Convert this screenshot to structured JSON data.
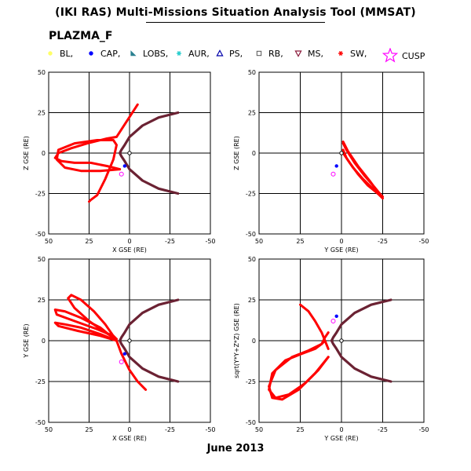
{
  "header": {
    "title": "(IKI RAS) Multi-Missions Situation Analysis Tool (MMSAT)",
    "mission": "PLAZMA_F",
    "date": "June 2013"
  },
  "legend": [
    {
      "label": "BL,",
      "icon": "circle-filled",
      "color": "#ffff66"
    },
    {
      "label": "CAP,",
      "icon": "circle-filled",
      "color": "#0000ff"
    },
    {
      "label": "LOBS,",
      "icon": "triangle-filled",
      "color": "#2a8090"
    },
    {
      "label": "AUR,",
      "icon": "asterisk",
      "color": "#22cccc"
    },
    {
      "label": "PS,",
      "icon": "triangle-outline",
      "color": "#0000aa"
    },
    {
      "label": "RB,",
      "icon": "square-outline",
      "color": "#555555"
    },
    {
      "label": "MS,",
      "icon": "triangle-down-outline",
      "color": "#8a1a3a"
    },
    {
      "label": "SW,",
      "icon": "asterisk",
      "color": "#ff0000"
    },
    {
      "label": "CUSP",
      "icon": "star-outline",
      "color": "#ff00ff"
    }
  ],
  "colors": {
    "orbit": "#ff0000",
    "boundary": "#6b2233",
    "origin": "#000000"
  },
  "chart_data": [
    {
      "type": "line",
      "position": "top-left",
      "xlabel": "X GSE (RE)",
      "ylabel": "Z GSE (RE)",
      "xlim": [
        50,
        -50
      ],
      "ylim": [
        -50,
        50
      ],
      "xticks": [
        "50",
        "25",
        "0",
        "-25",
        "-50"
      ],
      "yticks": [
        "-50",
        "-25",
        "0",
        "25",
        "50"
      ],
      "grid": true,
      "series": [
        {
          "kind": "boundary",
          "x": [
            -30,
            -18,
            -8,
            0,
            3,
            5,
            6,
            5,
            3,
            0,
            -8,
            -18,
            -30
          ],
          "y": [
            -25,
            -22,
            -17,
            -10,
            -5,
            -2,
            0,
            2,
            5,
            10,
            17,
            22,
            25
          ]
        },
        {
          "kind": "orbit",
          "x": [
            6,
            18,
            30,
            40,
            45,
            44,
            34,
            20,
            10,
            8,
            10,
            15,
            20,
            24,
            25
          ],
          "y": [
            -10,
            -11,
            -11,
            -9,
            -4,
            2,
            6,
            8,
            8,
            5,
            -4,
            -16,
            -26,
            -29,
            -30
          ]
        },
        {
          "kind": "orbit",
          "x": [
            6,
            14,
            24,
            34,
            42,
            46,
            44,
            36,
            26,
            14,
            8,
            -5
          ],
          "y": [
            -10,
            -8,
            -6,
            -6,
            -5,
            -3,
            0,
            3,
            6,
            9,
            10,
            30
          ]
        }
      ]
    },
    {
      "type": "line",
      "position": "top-right",
      "xlabel": "Y GSE (RE)",
      "ylabel": "Z GSE (RE)",
      "xlim": [
        50,
        -50
      ],
      "ylim": [
        -50,
        50
      ],
      "xticks": [
        "50",
        "25",
        "0",
        "-25",
        "-50"
      ],
      "yticks": [
        "-50",
        "-25",
        "0",
        "25",
        "50"
      ],
      "grid": true,
      "series": [
        {
          "kind": "orbit",
          "x": [
            -1,
            -3,
            -8,
            -14,
            -20,
            -24,
            -25,
            -22,
            -16,
            -10,
            -5,
            -1
          ],
          "y": [
            6,
            2,
            -6,
            -14,
            -21,
            -26,
            -27,
            -25,
            -20,
            -13,
            -6,
            0
          ]
        },
        {
          "kind": "orbit",
          "x": [
            -1,
            -4,
            -10,
            -17,
            -22,
            -25,
            -24,
            -20,
            -13,
            -7,
            -3,
            -1
          ],
          "y": [
            7,
            1,
            -8,
            -17,
            -24,
            -28,
            -27,
            -23,
            -16,
            -9,
            -3,
            2
          ]
        }
      ]
    },
    {
      "type": "line",
      "position": "bottom-left",
      "xlabel": "X GSE (RE)",
      "ylabel": "Y GSE (RE)",
      "xlim": [
        50,
        -50
      ],
      "ylim": [
        -50,
        50
      ],
      "xticks": [
        "50",
        "25",
        "0",
        "-25",
        "-50"
      ],
      "yticks": [
        "-50",
        "-25",
        "0",
        "25",
        "50"
      ],
      "grid": true,
      "series": [
        {
          "kind": "boundary",
          "x": [
            -30,
            -18,
            -8,
            0,
            3,
            5,
            6,
            5,
            3,
            0,
            -8,
            -18,
            -30
          ],
          "y": [
            -25,
            -22,
            -17,
            -10,
            -5,
            -2,
            0,
            2,
            5,
            10,
            17,
            22,
            25
          ]
        },
        {
          "kind": "orbit",
          "x": [
            8,
            18,
            30,
            40,
            46,
            44,
            32,
            18,
            8
          ],
          "y": [
            0,
            4,
            8,
            10,
            11,
            9,
            6,
            3,
            0
          ]
        },
        {
          "kind": "orbit",
          "x": [
            8,
            18,
            30,
            40,
            46,
            45,
            34,
            20,
            10,
            8
          ],
          "y": [
            0,
            8,
            14,
            18,
            19,
            16,
            12,
            7,
            3,
            1
          ]
        },
        {
          "kind": "orbit",
          "x": [
            8,
            15,
            22,
            30,
            36,
            38,
            34,
            25,
            15,
            8
          ],
          "y": [
            0,
            10,
            18,
            25,
            28,
            26,
            20,
            12,
            5,
            1
          ]
        },
        {
          "kind": "orbit",
          "x": [
            8,
            5,
            0,
            -5,
            -10
          ],
          "y": [
            0,
            -8,
            -18,
            -25,
            -30
          ]
        }
      ]
    },
    {
      "type": "line",
      "position": "bottom-right",
      "xlabel": "Y GSE (RE)",
      "ylabel": "sqrt(Y*Y+Z*Z) GSE (RE)",
      "xlim": [
        50,
        -50
      ],
      "ylim": [
        -50,
        50
      ],
      "xticks": [
        "50",
        "25",
        "0",
        "-25",
        "-50"
      ],
      "yticks": [
        "-50",
        "-25",
        "0",
        "25",
        "50"
      ],
      "grid": true,
      "series": [
        {
          "kind": "boundary",
          "x": [
            -30,
            -18,
            -8,
            0,
            3,
            5,
            6,
            5,
            3,
            0,
            -8,
            -18,
            -30
          ],
          "y": [
            -25,
            -22,
            -17,
            -10,
            -5,
            -2,
            0,
            2,
            5,
            10,
            17,
            22,
            25
          ]
        },
        {
          "kind": "orbit",
          "x": [
            8,
            14,
            22,
            32,
            40,
            44,
            42,
            34,
            24,
            16,
            12,
            10,
            8
          ],
          "y": [
            -10,
            -18,
            -26,
            -33,
            -35,
            -30,
            -20,
            -12,
            -8,
            -5,
            -2,
            2,
            5
          ]
        },
        {
          "kind": "orbit",
          "x": [
            8,
            16,
            26,
            36,
            42,
            44,
            40,
            30,
            20,
            12,
            10
          ],
          "y": [
            -10,
            -20,
            -30,
            -36,
            -35,
            -28,
            -18,
            -10,
            -6,
            -2,
            0
          ]
        },
        {
          "kind": "orbit",
          "x": [
            8,
            12,
            16,
            20,
            25
          ],
          "y": [
            -5,
            5,
            12,
            18,
            22
          ]
        }
      ]
    }
  ]
}
